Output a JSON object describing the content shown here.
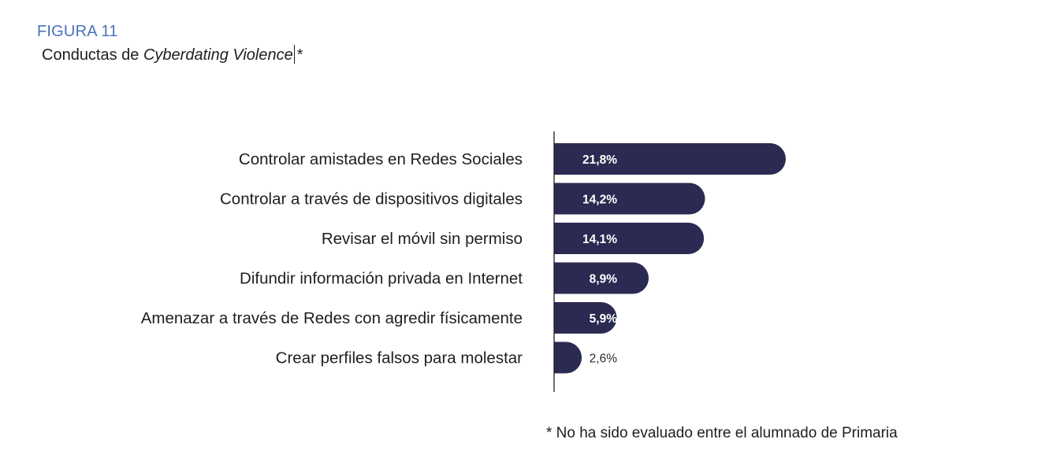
{
  "figure": {
    "label": "FIGURA 11",
    "title_prefix": "Conductas de ",
    "title_emphasis": "Cyberdating Violence",
    "title_suffix": "*"
  },
  "footnote": "* No ha sido evaluado entre el alumnado de Primaria",
  "colors": {
    "bar": "#2a2a52",
    "figure_label": "#4a72b8",
    "text": "#1e1e1e"
  },
  "chart_data": {
    "type": "bar",
    "orientation": "horizontal",
    "title": "Conductas de Cyberdating Violence*",
    "xlabel": "",
    "ylabel": "",
    "xlim": [
      0,
      100
    ],
    "categories": [
      "Controlar amistades en Redes Sociales",
      "Controlar a través de dispositivos digitales",
      "Revisar el móvil sin permiso",
      "Difundir información privada en Internet",
      "Amenazar a través de Redes con agredir físicamente",
      "Crear perfiles falsos para molestar"
    ],
    "values": [
      21.8,
      14.2,
      14.1,
      8.9,
      5.9,
      2.6
    ],
    "value_labels": [
      "21,8%",
      "14,2%",
      "14,1%",
      "8,9%",
      "5,9%",
      "2,6%"
    ],
    "unit": "%",
    "grid": false,
    "legend": "none"
  }
}
